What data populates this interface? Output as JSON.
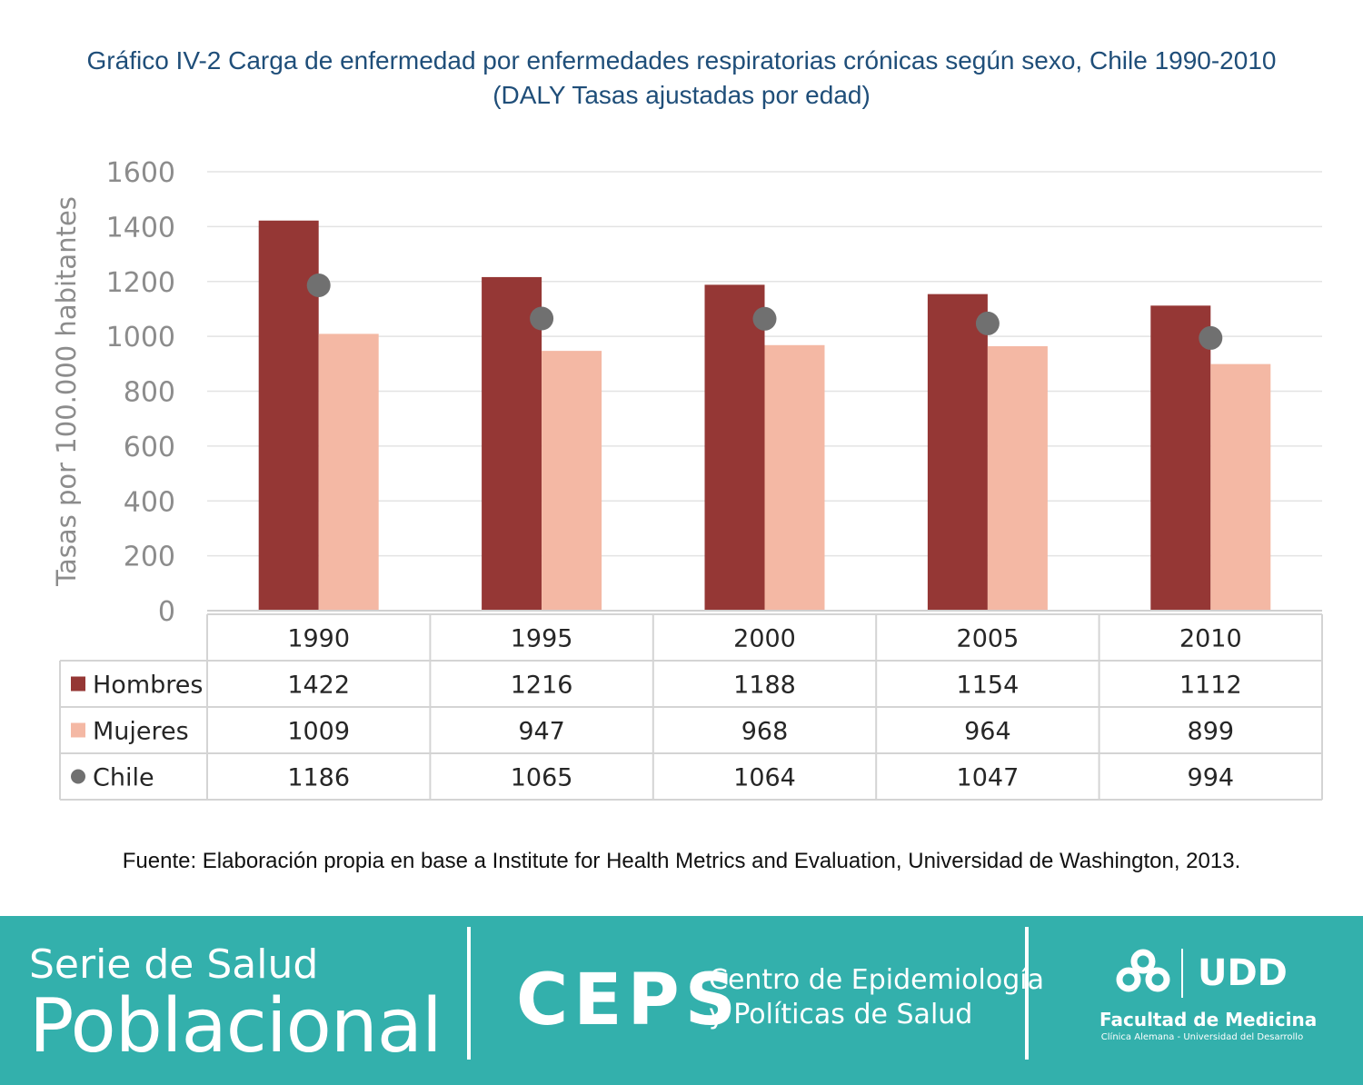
{
  "chart_data": {
    "type": "bar",
    "title": "Gráfico IV-2 Carga de enfermedad por enfermedades respiratorias crónicas según sexo, Chile 1990-2010",
    "subtitle": "(DALY Tasas ajustadas por edad)",
    "ylabel": "Tasas por 100.000 habitantes",
    "xlabel": "",
    "ylim": [
      0,
      1600
    ],
    "yticks": [
      0,
      200,
      400,
      600,
      800,
      1000,
      1200,
      1400,
      1600
    ],
    "grid": true,
    "categories": [
      "1990",
      "1995",
      "2000",
      "2005",
      "2010"
    ],
    "series": [
      {
        "name": "Hombres",
        "type": "bar",
        "color": "#953735",
        "values": [
          1422,
          1216,
          1188,
          1154,
          1112
        ]
      },
      {
        "name": "Mujeres",
        "type": "bar",
        "color": "#f4b8a4",
        "values": [
          1009,
          947,
          968,
          964,
          899
        ]
      },
      {
        "name": "Chile",
        "type": "marker",
        "color": "#707070",
        "values": [
          1186,
          1065,
          1064,
          1047,
          994
        ]
      }
    ],
    "legend_placement": "data-table"
  },
  "source": "Fuente: Elaboración propia en base a Institute for Health Metrics and Evaluation, Universidad de Washington, 2013.",
  "footer": {
    "serie_line1": "Serie de Salud",
    "serie_line2": "Poblacional",
    "ceps": "CEPS",
    "ceps_name_line1": "Centro de Epidemiología",
    "ceps_name_line2": "y Políticas de Salud",
    "udd": "UDD",
    "facultad": "Facultad de Medicina",
    "clinica": "Clínica Alemana - Universidad del Desarrollo",
    "background_color": "#33b0ac"
  }
}
